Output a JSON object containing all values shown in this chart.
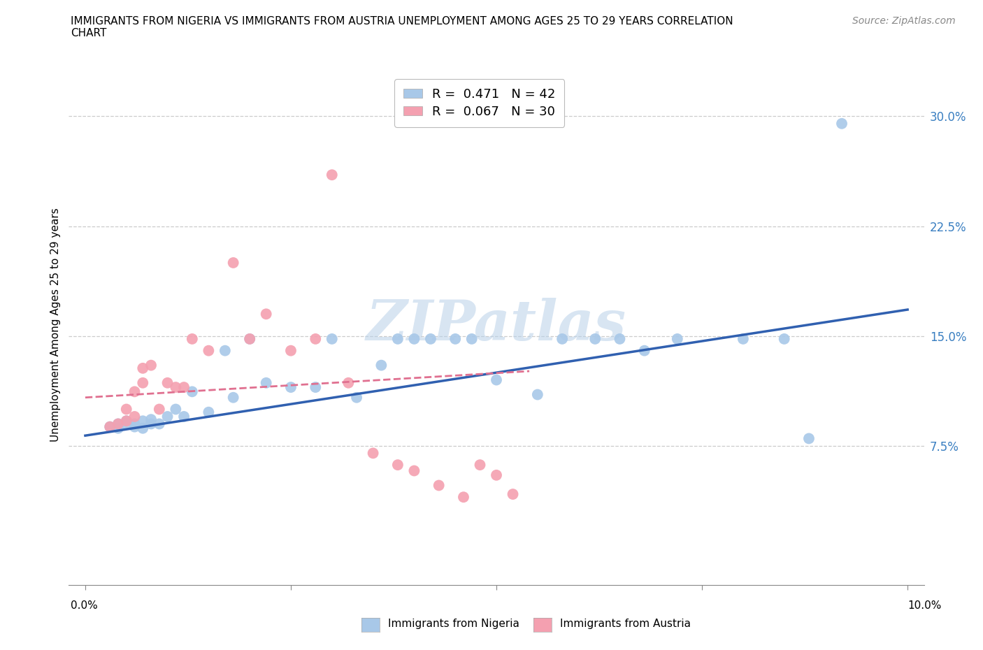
{
  "title_line1": "IMMIGRANTS FROM NIGERIA VS IMMIGRANTS FROM AUSTRIA UNEMPLOYMENT AMONG AGES 25 TO 29 YEARS CORRELATION",
  "title_line2": "CHART",
  "source": "Source: ZipAtlas.com",
  "ylabel": "Unemployment Among Ages 25 to 29 years",
  "ytick_vals": [
    0.075,
    0.15,
    0.225,
    0.3
  ],
  "ytick_labels": [
    "7.5%",
    "15.0%",
    "22.5%",
    "30.0%"
  ],
  "xlim": [
    -0.002,
    0.102
  ],
  "ylim": [
    -0.02,
    0.335
  ],
  "nigeria_R": 0.471,
  "nigeria_N": 42,
  "austria_R": 0.067,
  "austria_N": 30,
  "nigeria_color": "#a8c8e8",
  "austria_color": "#f4a0b0",
  "nigeria_line_color": "#3060b0",
  "austria_line_color": "#e07090",
  "nigeria_line_x0": 0.0,
  "nigeria_line_y0": 0.082,
  "nigeria_line_x1": 0.1,
  "nigeria_line_y1": 0.168,
  "austria_line_x0": 0.0,
  "austria_line_y0": 0.108,
  "austria_line_x1": 0.054,
  "austria_line_y1": 0.126,
  "nigeria_x": [
    0.003,
    0.004,
    0.004,
    0.005,
    0.005,
    0.006,
    0.006,
    0.007,
    0.007,
    0.008,
    0.008,
    0.009,
    0.01,
    0.011,
    0.012,
    0.013,
    0.015,
    0.017,
    0.018,
    0.02,
    0.022,
    0.025,
    0.028,
    0.03,
    0.033,
    0.036,
    0.038,
    0.04,
    0.042,
    0.045,
    0.047,
    0.05,
    0.055,
    0.058,
    0.062,
    0.065,
    0.068,
    0.072,
    0.08,
    0.085,
    0.088,
    0.092
  ],
  "nigeria_y": [
    0.088,
    0.09,
    0.087,
    0.09,
    0.092,
    0.088,
    0.09,
    0.092,
    0.087,
    0.09,
    0.093,
    0.09,
    0.095,
    0.1,
    0.095,
    0.112,
    0.098,
    0.14,
    0.108,
    0.148,
    0.118,
    0.115,
    0.115,
    0.148,
    0.108,
    0.13,
    0.148,
    0.148,
    0.148,
    0.148,
    0.148,
    0.12,
    0.11,
    0.148,
    0.148,
    0.148,
    0.14,
    0.148,
    0.148,
    0.148,
    0.08,
    0.295
  ],
  "austria_x": [
    0.003,
    0.004,
    0.005,
    0.005,
    0.006,
    0.006,
    0.007,
    0.007,
    0.008,
    0.009,
    0.01,
    0.011,
    0.012,
    0.013,
    0.015,
    0.018,
    0.02,
    0.022,
    0.025,
    0.028,
    0.03,
    0.032,
    0.035,
    0.038,
    0.04,
    0.043,
    0.046,
    0.048,
    0.05,
    0.052
  ],
  "austria_y": [
    0.088,
    0.09,
    0.092,
    0.1,
    0.095,
    0.112,
    0.118,
    0.128,
    0.13,
    0.1,
    0.118,
    0.115,
    0.115,
    0.148,
    0.14,
    0.2,
    0.148,
    0.165,
    0.14,
    0.148,
    0.26,
    0.118,
    0.07,
    0.062,
    0.058,
    0.048,
    0.04,
    0.062,
    0.055,
    0.042
  ],
  "watermark": "ZIPatlas",
  "background_color": "#ffffff",
  "grid_color": "#cccccc"
}
